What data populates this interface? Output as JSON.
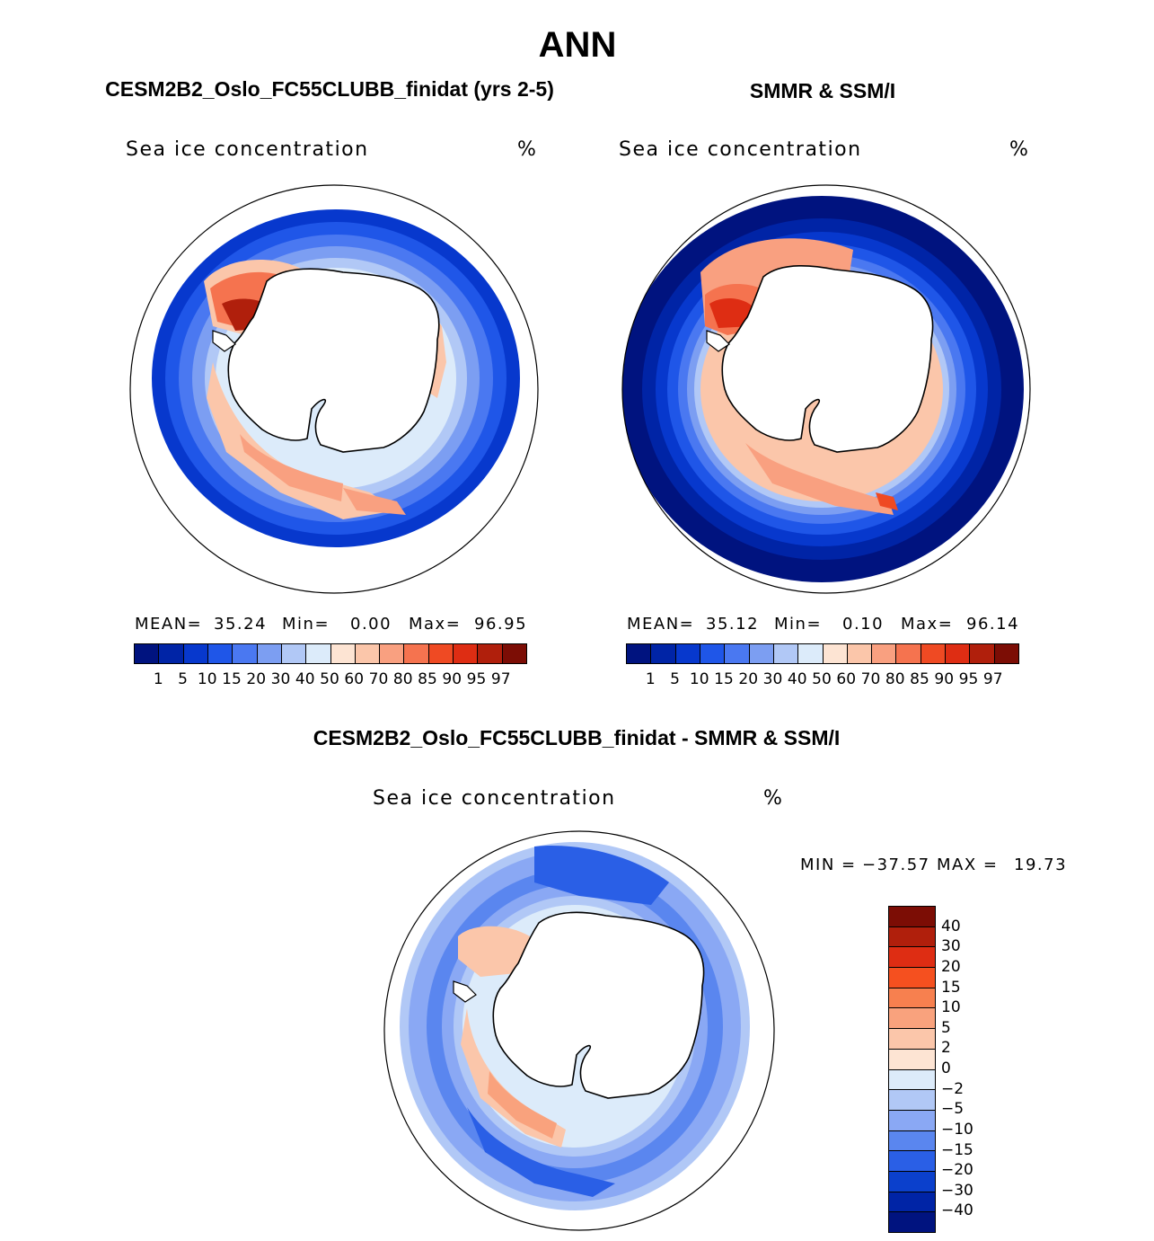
{
  "figure": {
    "main_title": "ANN",
    "panel_left_title": "CESM2B2_Oslo_FC55CLUBB_finidat (yrs 2-5)",
    "panel_right_title": "SMMR & SSM/I",
    "panel_bottom_title": "CESM2B2_Oslo_FC55CLUBB_finidat - SMMR & SSM/I"
  },
  "chart_data": [
    {
      "type": "heatmap",
      "projection": "south-polar-stereographic",
      "title": "CESM2B2_Oslo_FC55CLUBB_finidat (yrs 2-5)",
      "variable": "Sea ice concentration",
      "units": "%",
      "stats": {
        "mean_label": "MEAN=",
        "mean": "35.24",
        "min_label": "Min=",
        "min": "0.00",
        "max_label": "Max=",
        "max": "96.95"
      },
      "levels": [
        "1",
        "5",
        "10",
        "15",
        "20",
        "30",
        "40",
        "50",
        "60",
        "70",
        "80",
        "85",
        "90",
        "95",
        "97"
      ]
    },
    {
      "type": "heatmap",
      "projection": "south-polar-stereographic",
      "title": "SMMR & SSM/I",
      "variable": "Sea ice concentration",
      "units": "%",
      "stats": {
        "mean_label": "MEAN=",
        "mean": "35.12",
        "min_label": "Min=",
        "min": "0.10",
        "max_label": "Max=",
        "max": "96.14"
      },
      "levels": [
        "1",
        "5",
        "10",
        "15",
        "20",
        "30",
        "40",
        "50",
        "60",
        "70",
        "80",
        "85",
        "90",
        "95",
        "97"
      ]
    },
    {
      "type": "heatmap",
      "projection": "south-polar-stereographic",
      "title": "CESM2B2_Oslo_FC55CLUBB_finidat - SMMR & SSM/I",
      "variable": "Sea ice concentration",
      "units": "%",
      "stats": {
        "min_label": "MIN =",
        "min": "−37.57",
        "max_label": "MAX =",
        "max": "19.73"
      },
      "levels": [
        "40",
        "30",
        "20",
        "15",
        "10",
        "5",
        "2",
        "0",
        "−2",
        "−5",
        "−10",
        "−15",
        "−20",
        "−30",
        "−40"
      ]
    }
  ],
  "colors": {
    "seq_colorbar": [
      "#00137f",
      "#0024a6",
      "#0738cd",
      "#1f56e8",
      "#4a78f1",
      "#7c9ef2",
      "#b1c8f6",
      "#dcebfa",
      "#fde4d3",
      "#fbc6aa",
      "#f9a080",
      "#f5734f",
      "#ef4a23",
      "#de2d13",
      "#b01f0c",
      "#7c0d05"
    ],
    "diff_colorbar": [
      "#7c0d05",
      "#b01f0c",
      "#de2d13",
      "#f5501f",
      "#f7804f",
      "#f9a27d",
      "#fbc6aa",
      "#fde4d3",
      "#dcebfa",
      "#b1c8f6",
      "#8aa8f4",
      "#5a86ef",
      "#2a5fe6",
      "#0b40cc",
      "#0024a6",
      "#00137f"
    ],
    "land": "#ffffff",
    "coast": "#000000"
  }
}
